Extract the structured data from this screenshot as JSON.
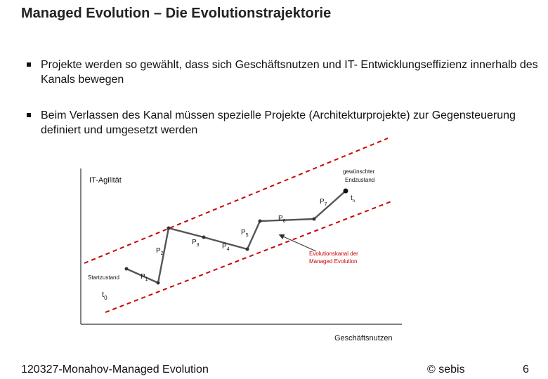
{
  "slide": {
    "title": "Managed Evolution – Die Evolutionstrajektorie",
    "bullets": [
      "Projekte werden so gewählt, dass sich Geschäftsnutzen und IT- Entwicklungseffizienz innerhalb des Kanals bewegen",
      "Beim Verlassen des Kanal müssen spezielle Projekte (Architekturprojekte) zur Gegensteuerung definiert und umgesetzt werden"
    ]
  },
  "diagram": {
    "y_axis_label": "IT-Agilität",
    "x_axis_label": "Geschäftsnutzen",
    "start_label": "Startzustand",
    "target_label_line1": "gewünschter",
    "target_label_line2": "Endzustand",
    "channel_label_line1": "Evolutionskanal der",
    "channel_label_line2": "Managed Evolution",
    "t0": {
      "base": "t",
      "sub": "0"
    },
    "tn": {
      "base": "t",
      "sub": "n"
    },
    "projects": [
      {
        "base": "P",
        "sub": "1"
      },
      {
        "base": "P",
        "sub": "2"
      },
      {
        "base": "P",
        "sub": "3"
      },
      {
        "base": "P",
        "sub": "4"
      },
      {
        "base": "P",
        "sub": "5"
      },
      {
        "base": "P",
        "sub": "6"
      },
      {
        "base": "P",
        "sub": "7"
      }
    ],
    "colors": {
      "channel": "#cc0000",
      "trajectory": "#555555",
      "axis": "#333333"
    }
  },
  "footer": {
    "left": "120327-Monahov-Managed Evolution",
    "copyright": "© sebis",
    "page": "6"
  }
}
